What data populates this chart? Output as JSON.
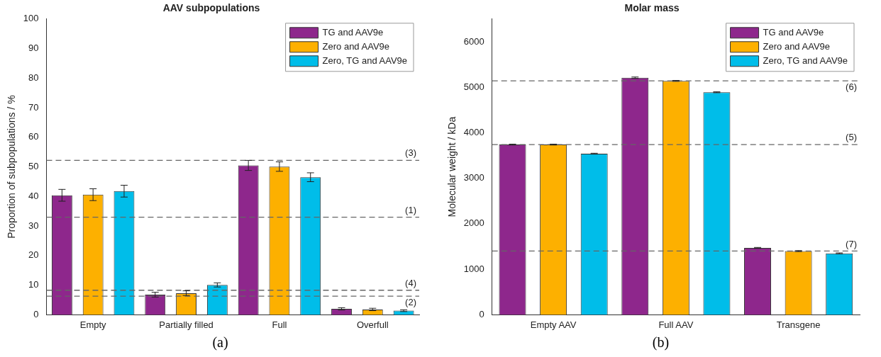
{
  "chart_data": [
    {
      "type": "bar",
      "title": "AAV subpopulations",
      "ylabel": "Proportion of subpopulations / %",
      "categories": [
        "Empty",
        "Partially filled",
        "Full",
        "Overfull"
      ],
      "series": [
        {
          "name": "TG and AAV9e",
          "color": "#8e278c",
          "values": [
            40.4,
            6.8,
            50.5,
            2.0
          ],
          "errors": [
            2.0,
            0.8,
            1.7,
            0.4
          ]
        },
        {
          "name": "Zero and AAV9e",
          "color": "#fdb000",
          "values": [
            40.6,
            7.3,
            50.1,
            1.8
          ],
          "errors": [
            2.0,
            0.8,
            1.6,
            0.4
          ]
        },
        {
          "name": "Zero, TG and AAV9e",
          "color": "#00bde9",
          "values": [
            41.8,
            10.1,
            46.5,
            1.4
          ],
          "errors": [
            2.0,
            0.7,
            1.5,
            0.3
          ]
        }
      ],
      "ylim": [
        0,
        100
      ],
      "yticks": [
        0,
        10,
        20,
        30,
        40,
        50,
        60,
        70,
        80,
        90,
        100
      ],
      "grid": false,
      "legend": "top right",
      "ref_lines": [
        {
          "axis": "y",
          "value": 52.2
        },
        {
          "axis": "y",
          "value": 33.0
        },
        {
          "axis": "y",
          "value": 8.3
        },
        {
          "axis": "y",
          "value": 6.3
        }
      ],
      "annotations": [
        {
          "text": "(3)",
          "y": 52.2
        },
        {
          "text": "(1)",
          "y": 33.0
        },
        {
          "text": "(4)",
          "y": 8.3
        },
        {
          "text": "(2)",
          "y": 6.3
        },
        "(a)"
      ]
    },
    {
      "type": "bar",
      "title": "Molar mass",
      "ylabel": "Molecular weight / kDa",
      "categories": [
        "Empty AAV",
        "Full AAV",
        "Transgene"
      ],
      "series": [
        {
          "name": "TG and AAV9e",
          "color": "#8e278c",
          "values": [
            3740,
            5210,
            1470
          ],
          "errors": [
            10,
            15,
            10
          ]
        },
        {
          "name": "Zero and AAV9e",
          "color": "#fdb000",
          "values": [
            3740,
            5140,
            1400
          ],
          "errors": [
            10,
            10,
            10
          ]
        },
        {
          "name": "Zero, TG and AAV9e",
          "color": "#00bde9",
          "values": [
            3540,
            4890,
            1350
          ],
          "errors": [
            10,
            10,
            10
          ]
        }
      ],
      "ylim": [
        0,
        6500
      ],
      "yticks": [
        0,
        1000,
        2000,
        3000,
        4000,
        5000,
        6000
      ],
      "grid": false,
      "legend": "top right",
      "ref_lines": [
        {
          "axis": "y",
          "value": 5140
        },
        {
          "axis": "y",
          "value": 3740
        },
        {
          "axis": "y",
          "value": 1400
        }
      ],
      "annotations": [
        {
          "text": "(6)",
          "y": 5140
        },
        {
          "text": "(5)",
          "y": 3740
        },
        {
          "text": "(7)",
          "y": 1400
        },
        "(b)"
      ]
    }
  ]
}
